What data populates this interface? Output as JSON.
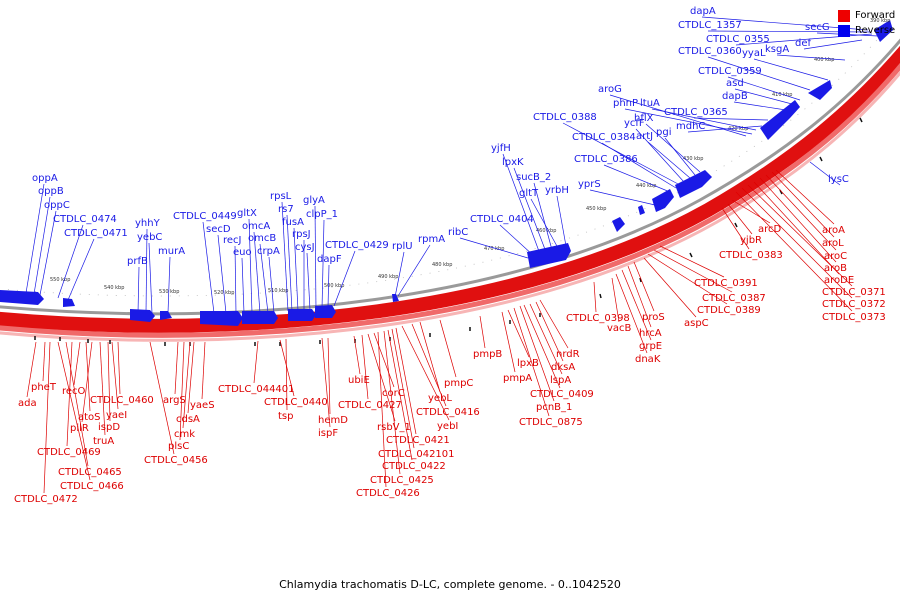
{
  "caption": "Chlamydia trachomatis D-LC, complete genome. - 0..1042520",
  "legend": {
    "forward_label": "Forward",
    "reverse_label": "Reverse",
    "forward_color": "#ee0000",
    "reverse_color": "#0000ee"
  },
  "colors": {
    "forward": "#dd0000",
    "reverse": "#1a1ae6",
    "ring": "#e00000"
  },
  "ticks": [
    {
      "kbp": 390,
      "label": "390 kbp"
    },
    {
      "kbp": 400,
      "label": "400 kbp"
    },
    {
      "kbp": 410,
      "label": "410 kbp"
    },
    {
      "kbp": 420,
      "label": "420 kbp"
    },
    {
      "kbp": 430,
      "label": "430 kbp"
    },
    {
      "kbp": 440,
      "label": "440 kbp"
    },
    {
      "kbp": 450,
      "label": "450 kbp"
    },
    {
      "kbp": 460,
      "label": "460 kbp"
    },
    {
      "kbp": 470,
      "label": "470 kbp"
    },
    {
      "kbp": 480,
      "label": "480 kbp"
    },
    {
      "kbp": 490,
      "label": "490 kbp"
    },
    {
      "kbp": 500,
      "label": "500 kbp"
    },
    {
      "kbp": 510,
      "label": "510 kbp"
    },
    {
      "kbp": 520,
      "label": "520 kbp"
    },
    {
      "kbp": 530,
      "label": "530 kbp"
    },
    {
      "kbp": 540,
      "label": "540 kbp"
    },
    {
      "kbp": 550,
      "label": "550 kbp"
    }
  ],
  "reverse_genes": [
    "dapA",
    "CTDLC_1357",
    "CTDLC_0355",
    "secG",
    "def",
    "ksgA",
    "yyaL",
    "CTDLC_0360",
    "CTDLC_0359",
    "asd",
    "dapB",
    "CTDLC_0365",
    "mdhC",
    "ltuA",
    "phnP",
    "aroG",
    "hflX",
    "pgi",
    "artJ",
    "ycfF",
    "CTDLC_0388",
    "CTDLC_0384",
    "CTDLC_0386",
    "yprS",
    "yrbH",
    "gltT",
    "sucB_2",
    "lpxK",
    "yjfH",
    "CTDLC_0404",
    "ribC",
    "rpmA",
    "rplU",
    "CTDLC_0429",
    "dapF",
    "clpP_1",
    "glyA",
    "cysJ",
    "rpsJ",
    "fusA",
    "rs7",
    "rpsL",
    "crpA",
    "omcB",
    "omcA",
    "gltX",
    "euo",
    "recJ",
    "secD",
    "CTDLC_0449",
    "murA",
    "yebC",
    "yhhY",
    "prfB",
    "CTDLC_0471",
    "CTDLC_0474",
    "oppC",
    "oppB",
    "oppA",
    "lysC"
  ],
  "forward_genes": [
    "aroA",
    "aroL",
    "aroC",
    "aroB",
    "aroDE",
    "CTDLC_0371",
    "CTDLC_0372",
    "CTDLC_0373",
    "arcD",
    "yjbR",
    "CTDLC_0383",
    "CTDLC_0391",
    "CTDLC_0387",
    "CTDLC_0389",
    "aspC",
    "proS",
    "hrcA",
    "grpE",
    "dnaK",
    "vacB",
    "CTDLC_0398",
    "nrdR",
    "dksA",
    "lspA",
    "CTDLC_0409",
    "pcnB_1",
    "CTDLC_0875",
    "lpxB",
    "pmpA",
    "pmpB",
    "pmpC",
    "yebL",
    "CTDLC_0416",
    "yebI",
    "CTDLC_0421",
    "CTDLC_042101",
    "CTDLC_0422",
    "CTDLC_0425",
    "CTDLC_0426",
    "corC",
    "rsbV_1",
    "CTDLC_0427",
    "ubiE",
    "hemD",
    "ispF",
    "tsp",
    "CTDLC_0440",
    "CTDLC_044401",
    "yaeS",
    "cdsA",
    "cmk",
    "plsC",
    "argS",
    "CTDLC_0456",
    "CTDLC_0460",
    "yaeI",
    "ispD",
    "truA",
    "pilR",
    "atoS",
    "recO",
    "CTDLC_0469",
    "CTDLC_0465",
    "CTDLC_0466",
    "CTDLC_0472",
    "pheT",
    "ada"
  ]
}
